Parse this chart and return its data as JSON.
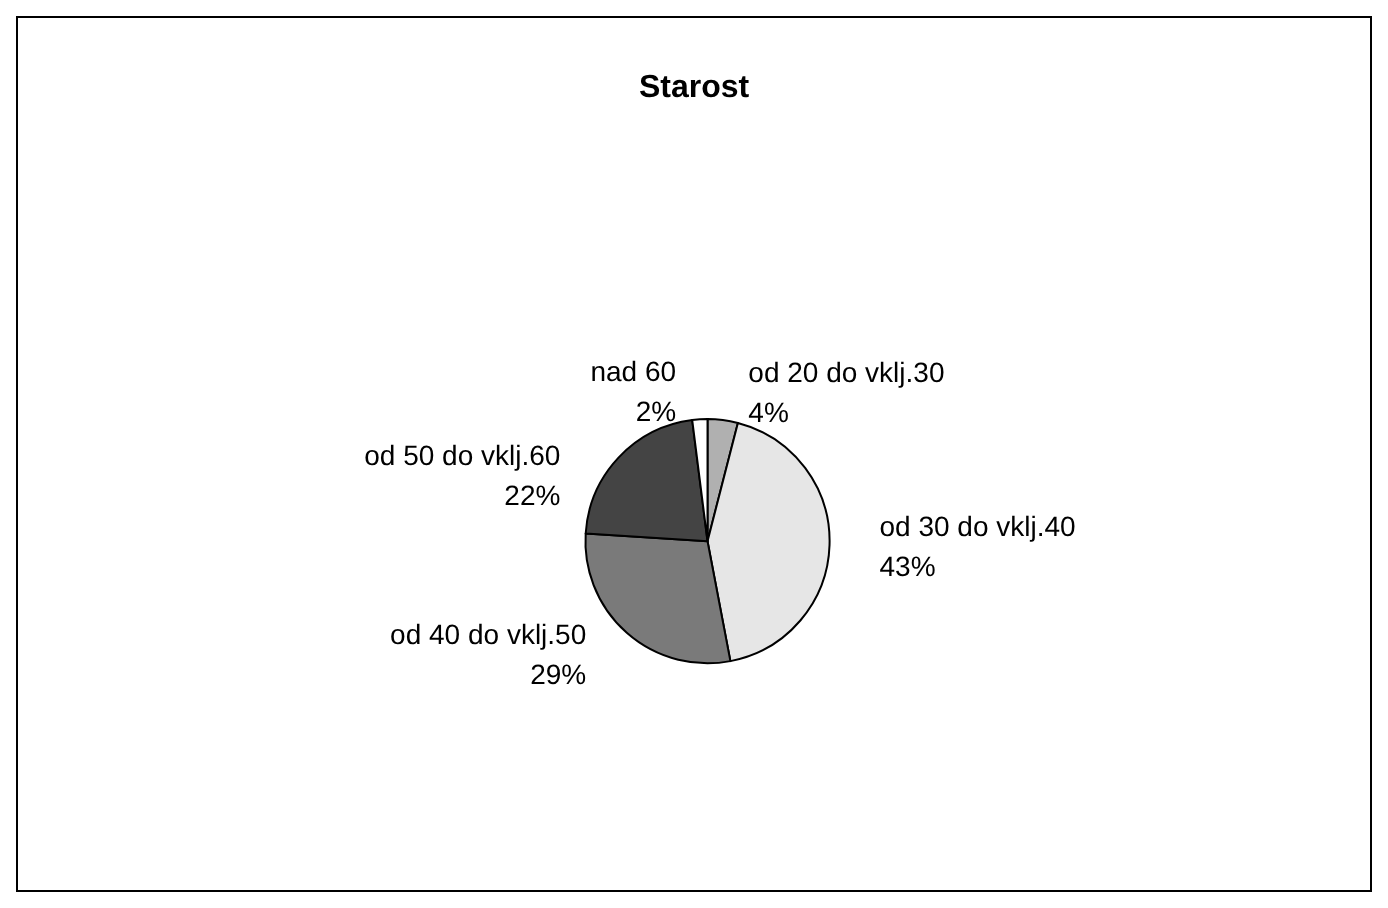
{
  "chart_data": {
    "type": "pie",
    "title": "Starost",
    "categories": [
      "od 20 do vklj.30",
      "od 30 do vklj.40",
      "od 40 do vklj.50",
      "od 50 do vklj.60",
      "nad 60"
    ],
    "values": [
      4,
      43,
      29,
      22,
      2
    ],
    "value_labels": [
      "4%",
      "43%",
      "29%",
      "22%",
      "2%"
    ],
    "colors": [
      "#b0b0b0",
      "#e6e6e6",
      "#7a7a7a",
      "#444444",
      "#ffffff"
    ],
    "legend": false
  }
}
